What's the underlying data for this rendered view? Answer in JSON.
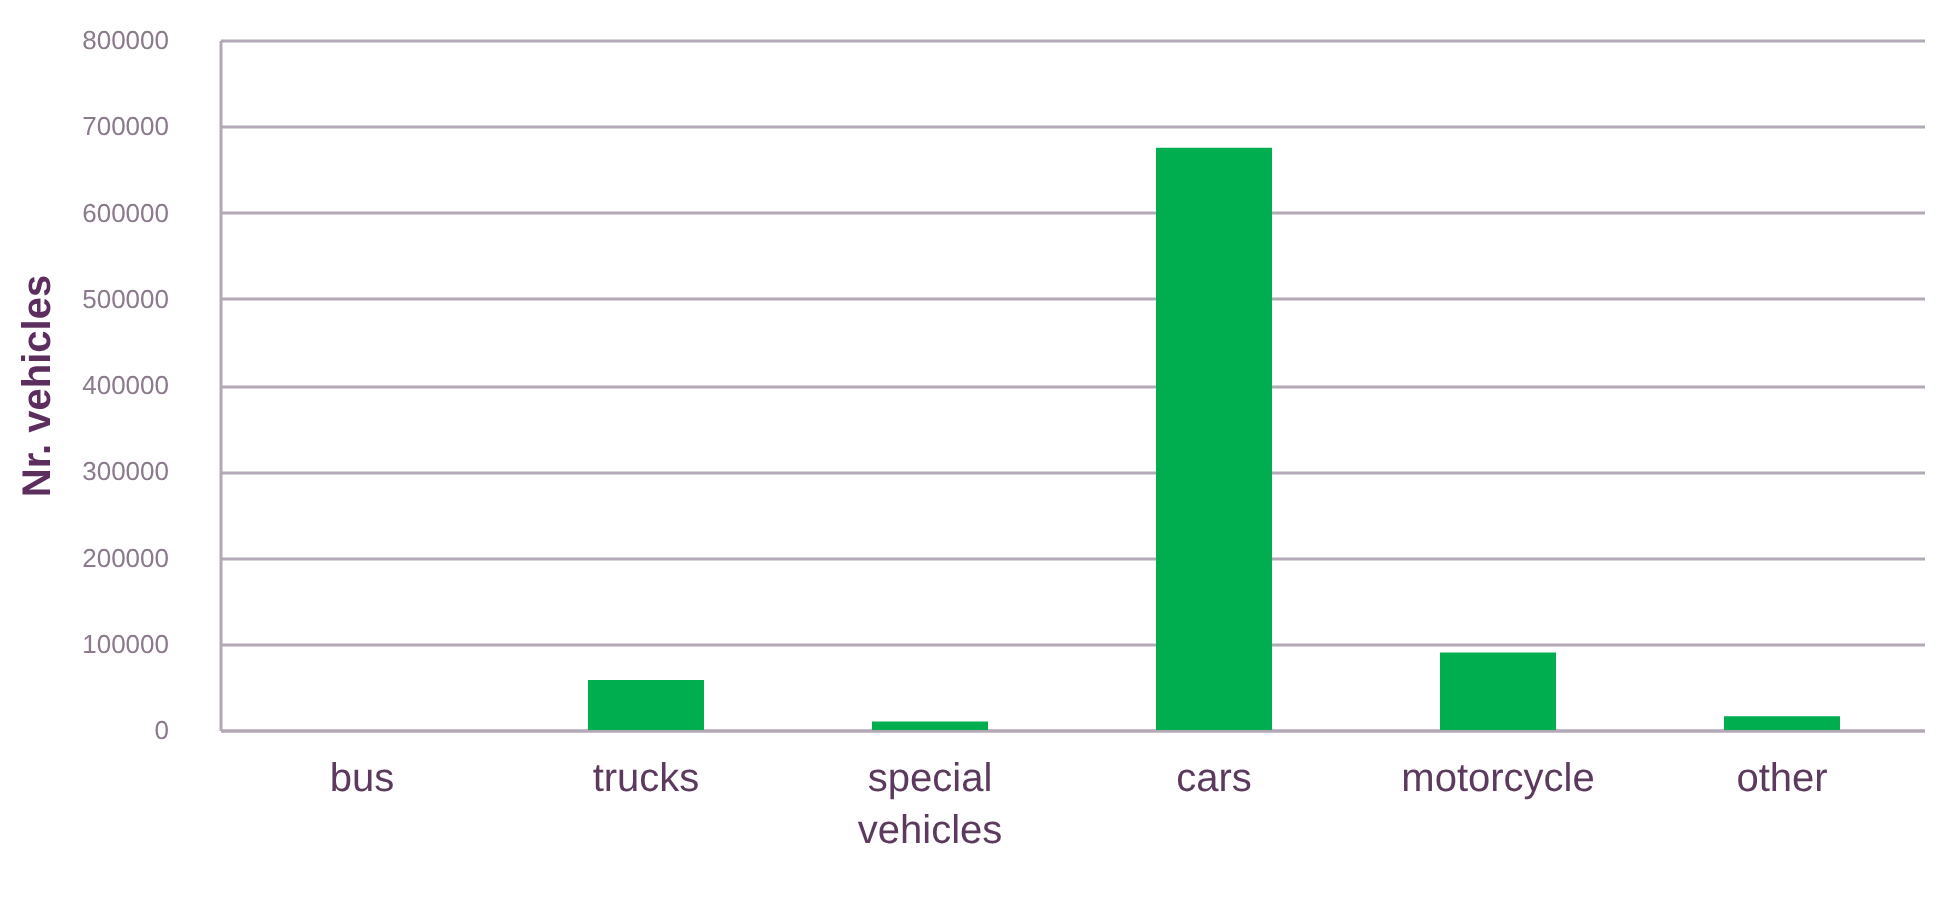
{
  "chart_data": {
    "type": "bar",
    "ylabel": "Nr. vehicles",
    "categories": [
      "bus",
      "trucks",
      "special vehicles",
      "cars",
      "motorcycle",
      "other"
    ],
    "values": [
      0,
      58000,
      10000,
      675000,
      90000,
      16000
    ],
    "color": "#00ad4f",
    "ylim": [
      0,
      800000
    ],
    "yticks": [
      0,
      100000,
      200000,
      300000,
      400000,
      500000,
      600000,
      700000,
      800000
    ],
    "grid": "y"
  }
}
